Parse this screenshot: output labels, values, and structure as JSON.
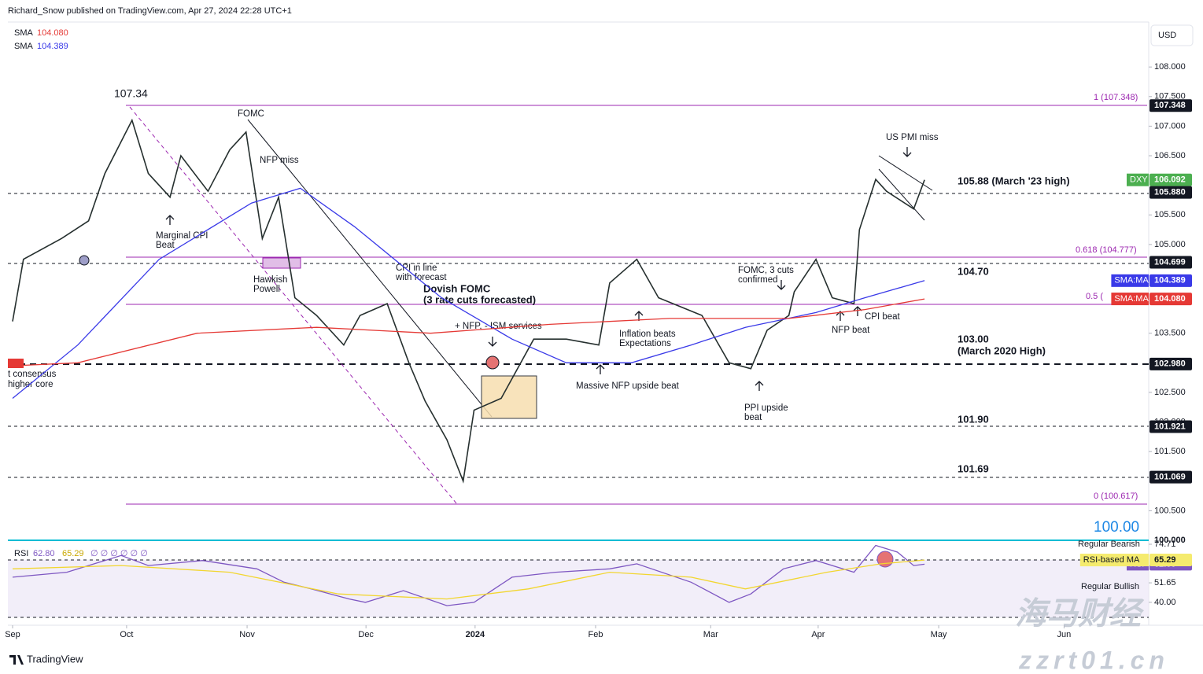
{
  "header": {
    "byline": "Richard_Snow published on TradingView.com, Apr 27, 2024 22:28 UTC+1",
    "currency": "USD",
    "brand": "TradingView",
    "watermark": "海马财经",
    "watermark_url": "zzrt01.cn"
  },
  "chart_data": [
    {
      "type": "line",
      "xlim": [
        0,
        209
      ],
      "ylim": [
        100,
        108.76
      ],
      "xticks": [
        {
          "value": 0,
          "label": "Sep"
        },
        {
          "value": 21,
          "label": "Oct"
        },
        {
          "value": 43.2,
          "label": "Nov"
        },
        {
          "value": 65.1,
          "label": "Dec"
        },
        {
          "value": 85.2,
          "label": "2024"
        },
        {
          "value": 107.4,
          "label": "Feb"
        },
        {
          "value": 128.6,
          "label": "Mar"
        },
        {
          "value": 148.4,
          "label": "Apr"
        },
        {
          "value": 170.6,
          "label": "May"
        },
        {
          "value": 193.7,
          "label": "Jun"
        }
      ],
      "yticks": [
        {
          "value": 108,
          "label": "108.000"
        },
        {
          "value": 107.5,
          "label": "107.500"
        },
        {
          "value": 107,
          "label": "107.000"
        },
        {
          "value": 106.5,
          "label": "106.500"
        },
        {
          "value": 105.5,
          "label": "105.500"
        },
        {
          "value": 105,
          "label": "105.000"
        },
        {
          "value": 103.5,
          "label": "103.500"
        },
        {
          "value": 103,
          "label": "103.000"
        },
        {
          "value": 102.5,
          "label": "102.500"
        },
        {
          "value": 102,
          "label": "102.000"
        },
        {
          "value": 101.5,
          "label": "101.500"
        },
        {
          "value": 100.5,
          "label": "100.500"
        }
      ],
      "series": [
        {
          "color": "#26302f",
          "x": [
            0,
            2,
            9,
            14,
            17,
            22,
            25,
            29,
            31,
            36,
            40,
            43,
            46,
            49,
            52,
            56,
            61,
            64,
            69,
            73,
            76,
            80,
            83,
            85,
            90,
            96,
            102,
            108,
            110,
            115,
            119,
            127,
            132,
            136,
            139,
            143,
            144,
            148,
            151,
            155,
            156,
            159,
            161,
            166,
            168
          ],
          "values": [
            103.7,
            104.75,
            105.1,
            105.4,
            106.2,
            107.1,
            106.2,
            105.8,
            106.5,
            105.9,
            106.6,
            106.9,
            105.1,
            105.8,
            104.1,
            103.8,
            103.3,
            103.8,
            104.0,
            103.0,
            102.35,
            101.7,
            101.0,
            102.2,
            102.4,
            103.4,
            103.4,
            103.3,
            104.35,
            104.75,
            104.1,
            103.8,
            103.0,
            102.9,
            103.55,
            103.8,
            104.2,
            104.75,
            104.1,
            104.0,
            105.25,
            106.1,
            105.9,
            105.6,
            106.092
          ]
        },
        {
          "name": "SMA",
          "color": "#3a3ae8",
          "x": [
            0,
            12,
            27,
            44,
            53,
            63,
            79,
            92,
            102,
            114,
            125,
            135,
            148,
            157,
            168
          ],
          "values": [
            102.4,
            103.3,
            104.75,
            105.7,
            105.95,
            105.3,
            104.1,
            103.4,
            103.0,
            103.0,
            103.3,
            103.6,
            103.85,
            104.1,
            104.389
          ]
        },
        {
          "name": "SMA",
          "color": "#e53935",
          "x": [
            0,
            12,
            34,
            56,
            77,
            99,
            121,
            143,
            157,
            168
          ],
          "values": [
            102.95,
            103.0,
            103.5,
            103.6,
            103.5,
            103.65,
            103.75,
            103.75,
            103.9,
            104.08
          ]
        }
      ],
      "levels": [
        {
          "value": 107.348,
          "label": "107.348",
          "color": "#131722"
        },
        {
          "value": 106.092,
          "label": "106.092",
          "tag": "DXY",
          "color": "#4caf50"
        },
        {
          "value": 105.88,
          "label": "105.880",
          "color": "#131722"
        },
        {
          "value": 104.699,
          "label": "104.699",
          "color": "#131722"
        },
        {
          "value": 104.389,
          "label": "104.389",
          "tag": "SMA:MA",
          "color": "#3a3ae8"
        },
        {
          "value": 104.08,
          "label": "104.080",
          "tag": "SMA:MA",
          "color": "#e53935"
        },
        {
          "value": 102.98,
          "label": "102.980",
          "color": "#131722"
        },
        {
          "value": 101.921,
          "label": "101.921",
          "color": "#131722"
        },
        {
          "value": 101.069,
          "label": "101.069",
          "color": "#131722"
        },
        {
          "value": 100,
          "label": "100.000",
          "color": "#ffffff"
        }
      ],
      "annotations": [
        "107.34",
        "FOMC",
        "NFP miss",
        "Marginal CPI",
        "Beat",
        "Hawkish",
        "Powell",
        "CPI in line",
        "with forecast",
        "Dovish FOMC",
        "(3 rate cuts forecasted)",
        "+ NFP, - ISM services",
        "Inflation beats",
        "Expectations",
        "Massive NFP upside beat",
        "FOMC, 3 cuts",
        "confirmed",
        "PPI upside",
        "beat",
        "NFP beat",
        "CPI beat",
        "US PMI miss",
        "t consensus",
        "higher core",
        "105.88 (March '23 high)",
        "104.70",
        "103.00",
        "(March 2020 High)",
        "101.90",
        "101.69",
        "100.00",
        "1 (107.348)",
        "0.618 (104.777)",
        "0.5 (",
        "0 (100.617)"
      ]
    },
    {
      "type": "line",
      "xlim": [
        0,
        209
      ],
      "ylim": [
        26.3,
        76.6
      ],
      "yticks": [
        74.71,
        51.65,
        {
          "value": 40,
          "label": "40.00"
        }
      ],
      "series": [
        {
          "name": "RSI",
          "color": "#7e57c2",
          "x": [
            0,
            10,
            20,
            25,
            35,
            45,
            50,
            55,
            62,
            65,
            72,
            80,
            85,
            92,
            100,
            110,
            115,
            125,
            132,
            136,
            142,
            148,
            155,
            159,
            163,
            166,
            168
          ],
          "values": [
            55,
            58,
            68,
            62,
            65,
            60,
            52,
            48,
            42,
            40,
            47,
            38,
            40,
            55,
            58,
            60,
            63,
            52,
            40,
            45,
            60,
            65,
            58,
            74,
            70,
            62,
            62.8
          ]
        },
        {
          "name": "RSI-based MA",
          "color": "#f2d630",
          "x": [
            0,
            20,
            40,
            60,
            80,
            95,
            110,
            125,
            135,
            150,
            160,
            168
          ],
          "values": [
            60,
            62,
            58,
            45,
            42,
            48,
            58,
            55,
            48,
            58,
            63,
            65.29
          ]
        }
      ],
      "levels": [
        {
          "value": 62.8,
          "label": "62.80",
          "color": "#7e57c2"
        },
        {
          "value": 65.29,
          "label": "65.29",
          "color": "#f5eb6e"
        }
      ],
      "legend_extra": "∅ ∅ ∅ ∅ ∅ ∅",
      "annotations": [
        "Regular Bearish",
        "Regular Bullish"
      ]
    }
  ]
}
